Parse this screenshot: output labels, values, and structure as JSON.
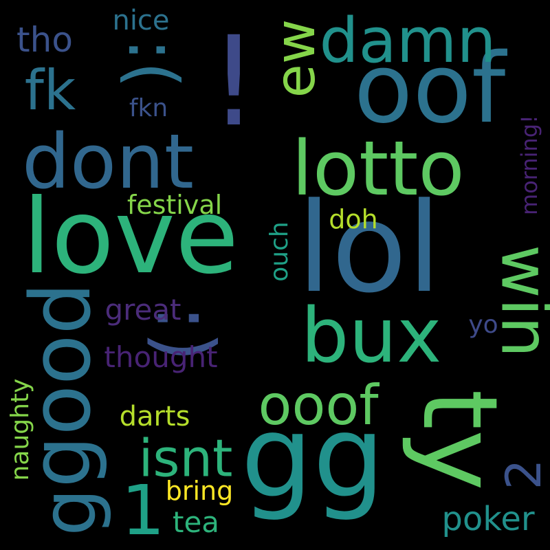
{
  "background": "#000000",
  "palette": {
    "dark_purple": "#482374",
    "purple": "#4b2c7a",
    "blue_violet": "#3e4a89",
    "slate_blue": "#3b528b",
    "blue": "#31678e",
    "steel_teal": "#2c728e",
    "teal": "#21918c",
    "sea_green": "#1fa187",
    "green": "#2db37b",
    "light_green": "#5ec962",
    "lime": "#85d54a",
    "yellow_green": "#b5de2b",
    "yellow": "#fde725"
  },
  "words": {
    "lol": "lol",
    "love": "love",
    "gg": "gg",
    "oof": "oof",
    "ty": "ty",
    "lotto": "lotto",
    "dont": "dont",
    "good": "good",
    "bux": "bux",
    "damn": "damn",
    "win": "win",
    "smiley": ":)",
    "exclaim": "!",
    "frown": ":(",
    "ooof": "ooof",
    "isnt": "isnt",
    "fk": "fk",
    "ew": "ew",
    "one": "1",
    "two": "2",
    "g": "g",
    "tho": "tho",
    "nice": "nice",
    "fkn": "fkn",
    "festival": "festival",
    "doh": "doh",
    "ouch": "ouch",
    "morning": "morning!",
    "great": "great",
    "thought": "thought",
    "yo": "yo",
    "naughty": "naughty",
    "darts": "darts",
    "bring": "bring",
    "tea": "tea",
    "poker": "poker"
  }
}
